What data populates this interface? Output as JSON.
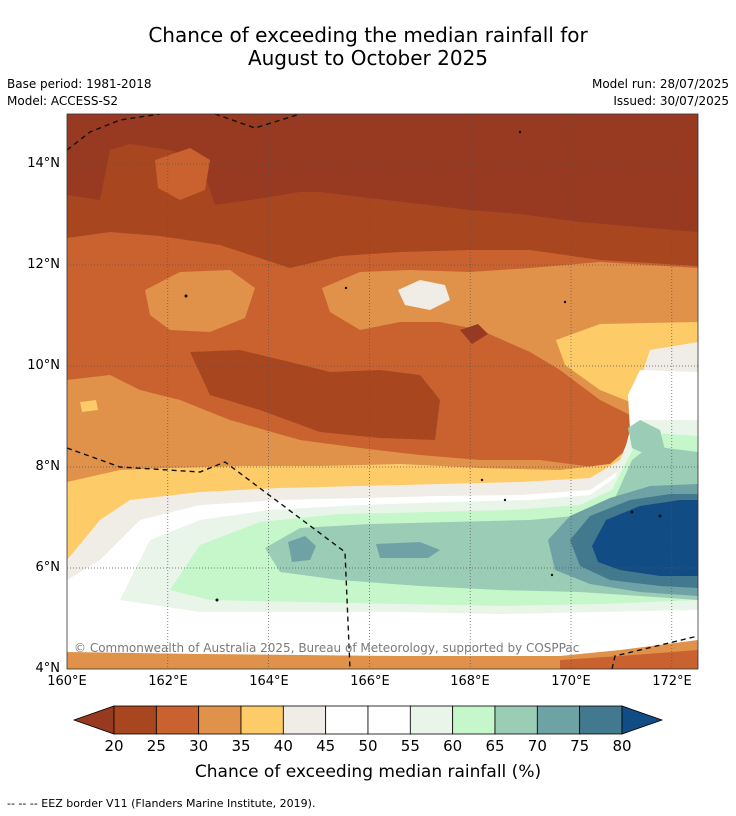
{
  "title_line1": "Chance of exceeding the median rainfall for",
  "title_line2": "August to October 2025",
  "base_period": "Base period: 1981-2018",
  "model": "Model: ACCESS-S2",
  "model_run": "Model run: 28/07/2025",
  "issued": "Issued: 30/07/2025",
  "axes": {
    "y_ticks": [
      "14°N",
      "12°N",
      "10°N",
      "8°N",
      "6°N",
      "4°N"
    ],
    "x_ticks": [
      "160°E",
      "162°E",
      "164°E",
      "166°E",
      "168°E",
      "170°E",
      "172°E"
    ],
    "lon_range": [
      160,
      172.5
    ],
    "lat_range": [
      4,
      15
    ],
    "grid": "dotted"
  },
  "copyright": "© Commonwealth of Australia 2025, Bureau of Meteorology, supported by COSPPac",
  "colorbar": {
    "title": "Chance of exceeding median rainfall (%)",
    "labels": [
      "20",
      "25",
      "30",
      "35",
      "40",
      "45",
      "50",
      "55",
      "60",
      "65",
      "70",
      "75",
      "80"
    ],
    "colors": [
      "#a8461f",
      "#c9622e",
      "#e0924a",
      "#fecb69",
      "#f0ece6",
      "#ffffff",
      "#ffffff",
      "#eaf5e9",
      "#c5f7cb",
      "#9bccb6",
      "#6fa2a5",
      "#42798f"
    ],
    "under_color": "#973a21",
    "over_color": "#124c85"
  },
  "legend_footer": "--  --  -- EEZ border V11 (Flanders Marine Institute, 2019).",
  "colors": {
    "very_dry": "#973a21",
    "dry": "#a8461f",
    "wet": "#124c85"
  }
}
